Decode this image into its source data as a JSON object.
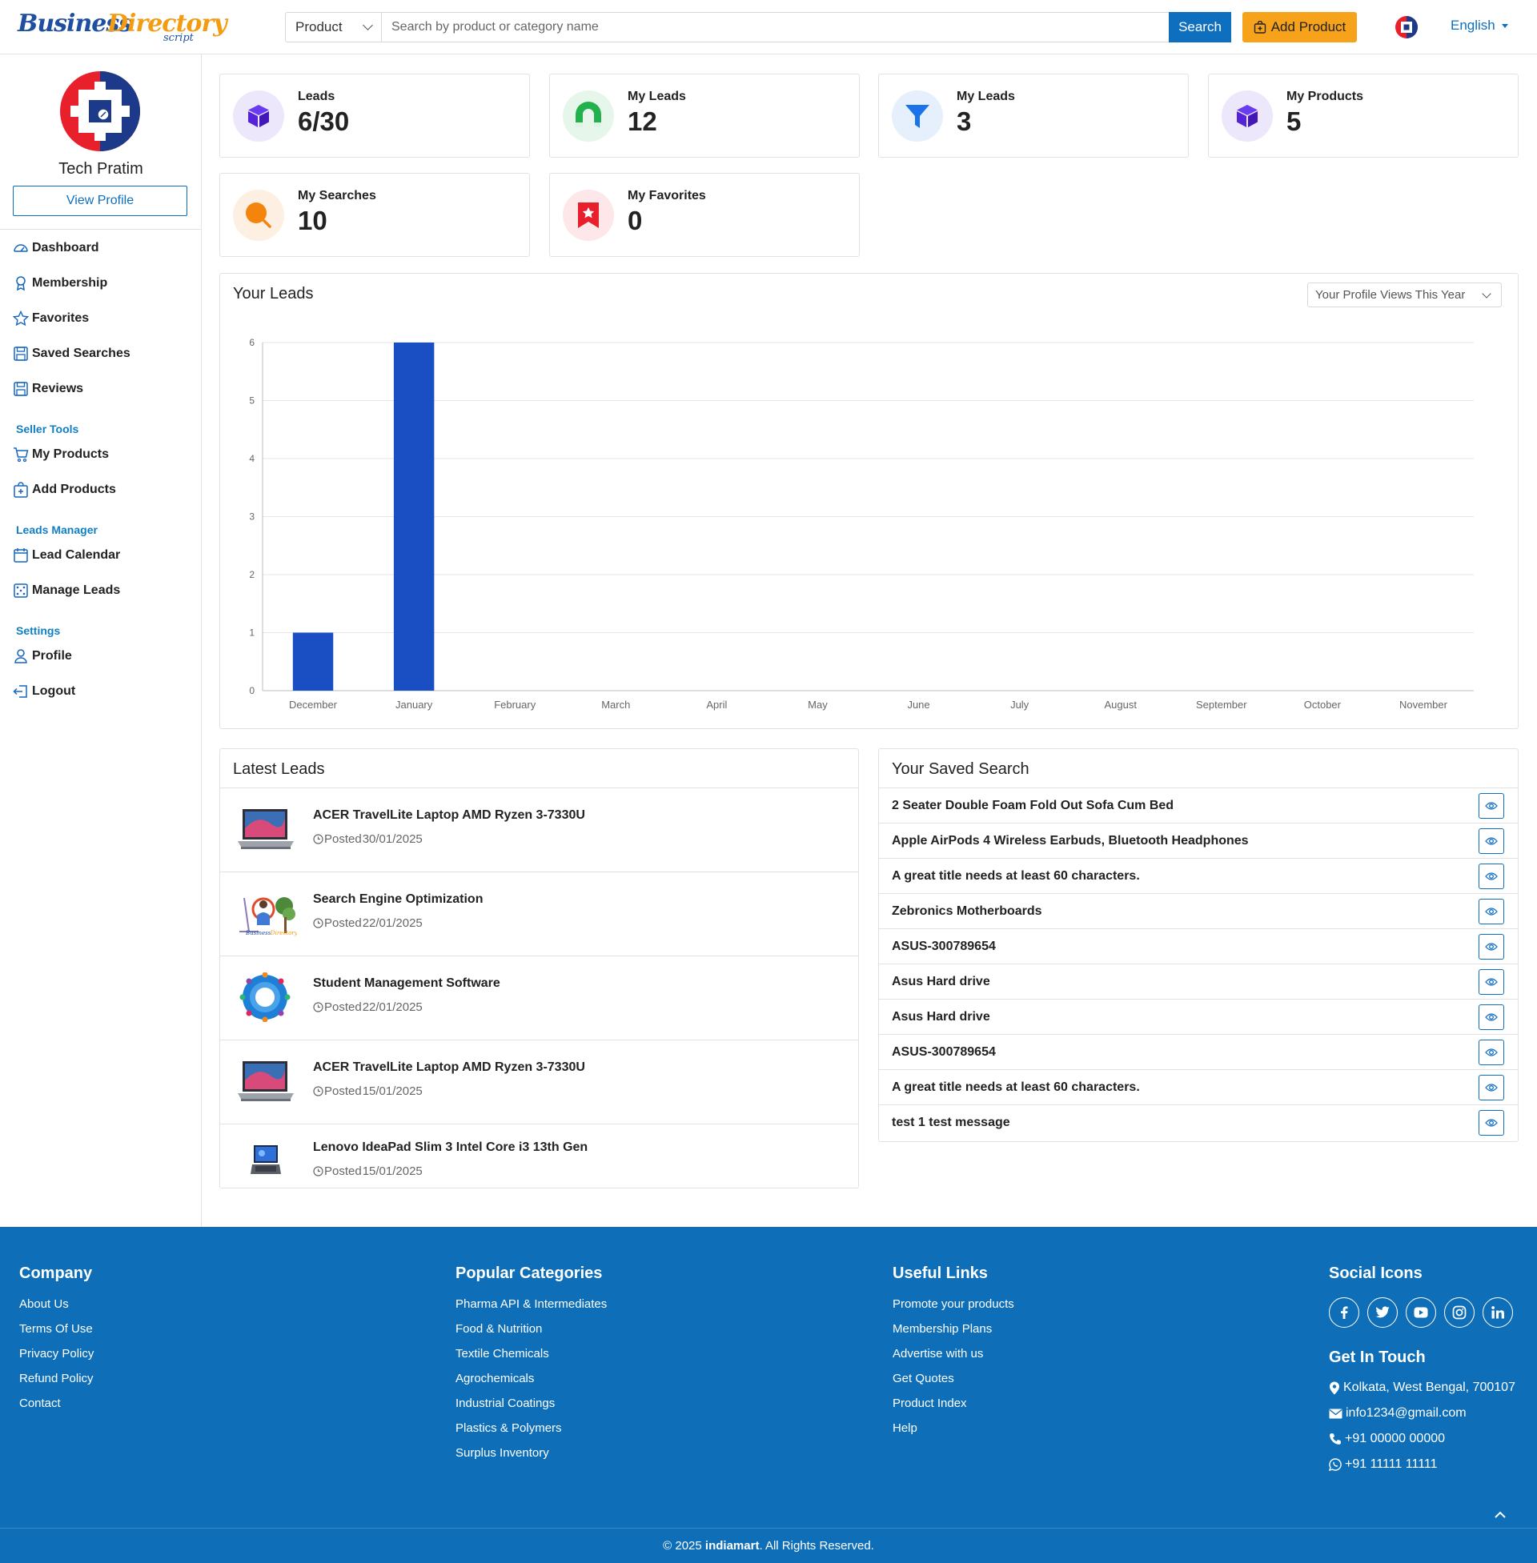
{
  "brand": {
    "word1": "Business",
    "word2": "Directory",
    "word3": "script"
  },
  "header": {
    "search_category": "Product",
    "search_placeholder": "Search by product or category name",
    "search_label": "Search",
    "add_product_label": "Add Product",
    "language": "English"
  },
  "sidebar": {
    "user_name": "Tech Pratim",
    "view_profile_label": "View Profile",
    "main_items": [
      {
        "label": "Dashboard",
        "icon": "dashboard-icon"
      },
      {
        "label": "Membership",
        "icon": "award-icon"
      },
      {
        "label": "Favorites",
        "icon": "star-icon"
      },
      {
        "label": "Saved Searches",
        "icon": "save-icon"
      },
      {
        "label": "Reviews",
        "icon": "save-icon"
      }
    ],
    "seller_heading": "Seller Tools",
    "seller_items": [
      {
        "label": "My Products",
        "icon": "cart-icon"
      },
      {
        "label": "Add Products",
        "icon": "bag-plus-icon"
      }
    ],
    "leads_heading": "Leads Manager",
    "leads_items": [
      {
        "label": "Lead Calendar",
        "icon": "calendar-icon"
      },
      {
        "label": "Manage Leads",
        "icon": "dice-icon"
      }
    ],
    "settings_heading": "Settings",
    "settings_items": [
      {
        "label": "Profile",
        "icon": "person-icon"
      },
      {
        "label": "Logout",
        "icon": "logout-icon"
      }
    ]
  },
  "stats": [
    {
      "label": "Leads",
      "value": "6/30",
      "icon": "box-icon",
      "color": "#5b2be0"
    },
    {
      "label": "My Leads",
      "value": "12",
      "icon": "magnet-icon",
      "color": "#22b14c"
    },
    {
      "label": "My Leads",
      "value": "3",
      "icon": "funnel-icon",
      "color": "#1a73e8"
    },
    {
      "label": "My Products",
      "value": "5",
      "icon": "box-icon",
      "color": "#5b2be0"
    },
    {
      "label": "My Searches",
      "value": "10",
      "icon": "search-icon",
      "color": "#f5840c"
    },
    {
      "label": "My Favorites",
      "value": "0",
      "icon": "bookmark-star-icon",
      "color": "#e8202b"
    }
  ],
  "chart_panel": {
    "title": "Your Leads",
    "selector": "Your Profile Views This Year"
  },
  "chart_data": {
    "type": "bar",
    "categories": [
      "December",
      "January",
      "February",
      "March",
      "April",
      "May",
      "June",
      "July",
      "August",
      "September",
      "October",
      "November"
    ],
    "values": [
      1,
      6,
      0,
      0,
      0,
      0,
      0,
      0,
      0,
      0,
      0,
      0
    ],
    "y_ticks": [
      "0",
      "1",
      "2",
      "3",
      "4",
      "5",
      "6"
    ],
    "ylim": [
      0,
      6
    ],
    "grid": true,
    "bar_color": "#1a4fc4"
  },
  "latest_leads": {
    "title": "Latest Leads",
    "posted_prefix": "Posted",
    "items": [
      {
        "title": "ACER TravelLite Laptop AMD Ryzen 3-7330U",
        "date": "30/01/2025",
        "thumb": "laptop"
      },
      {
        "title": "Search Engine Optimization",
        "date": "22/01/2025",
        "thumb": "seo"
      },
      {
        "title": "Student Management Software",
        "date": "22/01/2025",
        "thumb": "wheel"
      },
      {
        "title": "ACER TravelLite Laptop AMD Ryzen 3-7330U",
        "date": "15/01/2025",
        "thumb": "laptop"
      },
      {
        "title": "Lenovo IdeaPad Slim 3 Intel Core i3 13th Gen",
        "date": "15/01/2025",
        "thumb": "small-laptop"
      }
    ]
  },
  "saved_search": {
    "title": "Your Saved Search",
    "items": [
      "2 Seater Double Foam Fold Out Sofa Cum Bed",
      "Apple AirPods 4 Wireless Earbuds, Bluetooth Headphones",
      "A great title needs at least 60 characters.",
      "Zebronics Motherboards",
      "ASUS-300789654",
      "Asus Hard drive",
      "Asus Hard drive",
      "ASUS-300789654",
      "A great title needs at least 60 characters.",
      "test 1 test message"
    ]
  },
  "footer": {
    "company": {
      "heading": "Company",
      "links": [
        "About Us",
        "Terms Of Use",
        "Privacy Policy",
        "Refund Policy",
        "Contact"
      ]
    },
    "categories": {
      "heading": "Popular Categories",
      "links": [
        "Pharma API & Intermediates",
        "Food & Nutrition",
        "Textile Chemicals",
        "Agrochemicals",
        "Industrial Coatings",
        "Plastics & Polymers",
        "Surplus Inventory"
      ]
    },
    "useful": {
      "heading": "Useful Links",
      "links": [
        "Promote your products",
        "Membership Plans",
        "Advertise with us",
        "Get Quotes",
        "Product Index",
        "Help"
      ]
    },
    "social_heading": "Social Icons",
    "social": [
      "facebook-icon",
      "twitter-icon",
      "youtube-icon",
      "instagram-icon",
      "linkedin-icon"
    ],
    "touch_heading": "Get In Touch",
    "address": "Kolkata, West Bengal, 700107",
    "email": "info1234@gmail.com",
    "phone": "+91 00000 00000",
    "whatsapp": "+91 11111 11111",
    "copyright_prefix": "© 2025 ",
    "copyright_brand": "indiamart",
    "copyright_suffix": ". All Rights Reserved."
  }
}
